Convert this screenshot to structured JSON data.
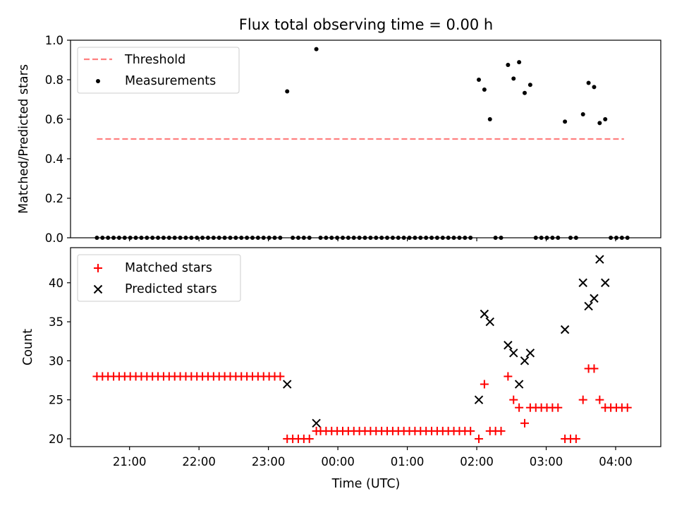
{
  "chart_data": {
    "type": "scatter",
    "title": "Flux total observing time = 0.00 h",
    "xlabel": "Time (UTC)",
    "x_ticks": [
      "21:00",
      "22:00",
      "23:00",
      "00:00",
      "01:00",
      "02:00",
      "03:00",
      "04:00"
    ],
    "x_tick_hours": [
      21,
      22,
      23,
      24,
      25,
      26,
      27,
      28
    ],
    "xlim_hours": [
      20.15,
      28.65
    ],
    "panels": [
      {
        "name": "top",
        "ylabel": "Matched/Predicted stars",
        "ylim": [
          0.0,
          1.0
        ],
        "y_ticks": [
          0.0,
          0.2,
          0.4,
          0.6,
          0.8,
          1.0
        ],
        "y_tick_labels": [
          "0.0",
          "0.2",
          "0.4",
          "0.6",
          "0.8",
          "1.0"
        ],
        "legend": {
          "placement": "upper left",
          "entries": [
            "Threshold",
            "Measurements"
          ]
        },
        "threshold": {
          "name": "Threshold",
          "value": 0.5,
          "x_start_hour": 20.53,
          "x_end_hour": 28.12,
          "color": "#ff7f7f",
          "style": "dashed"
        },
        "measurements": {
          "name": "Measurements",
          "color": "#000000",
          "x_hours": [
            20.53,
            20.61,
            20.69,
            20.77,
            20.85,
            20.93,
            21.01,
            21.09,
            21.17,
            21.25,
            21.33,
            21.41,
            21.49,
            21.57,
            21.65,
            21.73,
            21.81,
            21.89,
            21.97,
            22.05,
            22.13,
            22.21,
            22.29,
            22.37,
            22.45,
            22.53,
            22.61,
            22.69,
            22.77,
            22.85,
            22.93,
            23.01,
            23.09,
            23.17,
            23.27,
            23.35,
            23.43,
            23.51,
            23.59,
            23.69,
            23.75,
            23.83,
            23.91,
            23.99,
            24.07,
            24.15,
            24.23,
            24.31,
            24.39,
            24.47,
            24.55,
            24.63,
            24.71,
            24.79,
            24.87,
            24.95,
            25.03,
            25.11,
            25.19,
            25.27,
            25.35,
            25.43,
            25.51,
            25.59,
            25.67,
            25.75,
            25.83,
            25.91,
            26.03,
            26.11,
            26.19,
            26.27,
            26.35,
            26.45,
            26.53,
            26.61,
            26.69,
            26.77,
            26.85,
            26.93,
            27.01,
            27.09,
            27.17,
            27.27,
            27.35,
            27.43,
            27.53,
            27.61,
            27.69,
            27.77,
            27.85,
            27.93,
            28.01,
            28.09,
            28.17
          ],
          "y_values": [
            0,
            0,
            0,
            0,
            0,
            0,
            0,
            0,
            0,
            0,
            0,
            0,
            0,
            0,
            0,
            0,
            0,
            0,
            0,
            0,
            0,
            0,
            0,
            0,
            0,
            0,
            0,
            0,
            0,
            0,
            0,
            0,
            0,
            0,
            0.741,
            0,
            0,
            0,
            0,
            0.955,
            0,
            0,
            0,
            0,
            0,
            0,
            0,
            0,
            0,
            0,
            0,
            0,
            0,
            0,
            0,
            0,
            0,
            0,
            0,
            0,
            0,
            0,
            0,
            0,
            0,
            0,
            0,
            0,
            0.8,
            0.75,
            0.6,
            0,
            0,
            0.875,
            0.806,
            0.889,
            0.733,
            0.774,
            0,
            0,
            0,
            0,
            0,
            0.588,
            0,
            0,
            0.625,
            0.784,
            0.763,
            0.581,
            0.6,
            0,
            0,
            0,
            0
          ]
        }
      },
      {
        "name": "bottom",
        "ylabel": "Count",
        "ylim": [
          19,
          44.5
        ],
        "y_ticks": [
          20,
          25,
          30,
          35,
          40
        ],
        "y_tick_labels": [
          "20",
          "25",
          "30",
          "35",
          "40"
        ],
        "legend": {
          "placement": "upper left",
          "entries": [
            "Matched stars",
            "Predicted stars"
          ]
        },
        "series": [
          {
            "name": "Matched stars",
            "marker": "+",
            "color": "#ff0000",
            "x_hours": [
              20.53,
              20.61,
              20.69,
              20.77,
              20.85,
              20.93,
              21.01,
              21.09,
              21.17,
              21.25,
              21.33,
              21.41,
              21.49,
              21.57,
              21.65,
              21.73,
              21.81,
              21.89,
              21.97,
              22.05,
              22.13,
              22.21,
              22.29,
              22.37,
              22.45,
              22.53,
              22.61,
              22.69,
              22.77,
              22.85,
              22.93,
              23.01,
              23.09,
              23.17,
              23.27,
              23.35,
              23.43,
              23.51,
              23.59,
              23.69,
              23.75,
              23.83,
              23.91,
              23.99,
              24.07,
              24.15,
              24.23,
              24.31,
              24.39,
              24.47,
              24.55,
              24.63,
              24.71,
              24.79,
              24.87,
              24.95,
              25.03,
              25.11,
              25.19,
              25.27,
              25.35,
              25.43,
              25.51,
              25.59,
              25.67,
              25.75,
              25.83,
              25.91,
              26.03,
              26.11,
              26.19,
              26.27,
              26.35,
              26.45,
              26.53,
              26.61,
              26.69,
              26.77,
              26.85,
              26.93,
              27.01,
              27.09,
              27.17,
              27.27,
              27.35,
              27.43,
              27.53,
              27.61,
              27.69,
              27.77,
              27.85,
              27.93,
              28.01,
              28.09,
              28.17
            ],
            "y_values": [
              28,
              28,
              28,
              28,
              28,
              28,
              28,
              28,
              28,
              28,
              28,
              28,
              28,
              28,
              28,
              28,
              28,
              28,
              28,
              28,
              28,
              28,
              28,
              28,
              28,
              28,
              28,
              28,
              28,
              28,
              28,
              28,
              28,
              28,
              20,
              20,
              20,
              20,
              20,
              21,
              21,
              21,
              21,
              21,
              21,
              21,
              21,
              21,
              21,
              21,
              21,
              21,
              21,
              21,
              21,
              21,
              21,
              21,
              21,
              21,
              21,
              21,
              21,
              21,
              21,
              21,
              21,
              21,
              20,
              27,
              21,
              21,
              21,
              28,
              25,
              24,
              22,
              24,
              24,
              24,
              24,
              24,
              24,
              20,
              20,
              20,
              25,
              29,
              29,
              25,
              24,
              24,
              24,
              24,
              24
            ]
          },
          {
            "name": "Predicted stars",
            "marker": "x",
            "color": "#000000",
            "x_hours": [
              23.27,
              23.69,
              26.03,
              26.11,
              26.19,
              26.45,
              26.53,
              26.61,
              26.69,
              26.77,
              27.27,
              27.53,
              27.61,
              27.69,
              27.77,
              27.85
            ],
            "y_values": [
              27,
              22,
              25,
              36,
              35,
              32,
              31,
              27,
              30,
              31,
              34,
              40,
              37,
              38,
              43,
              40
            ]
          }
        ]
      }
    ]
  }
}
